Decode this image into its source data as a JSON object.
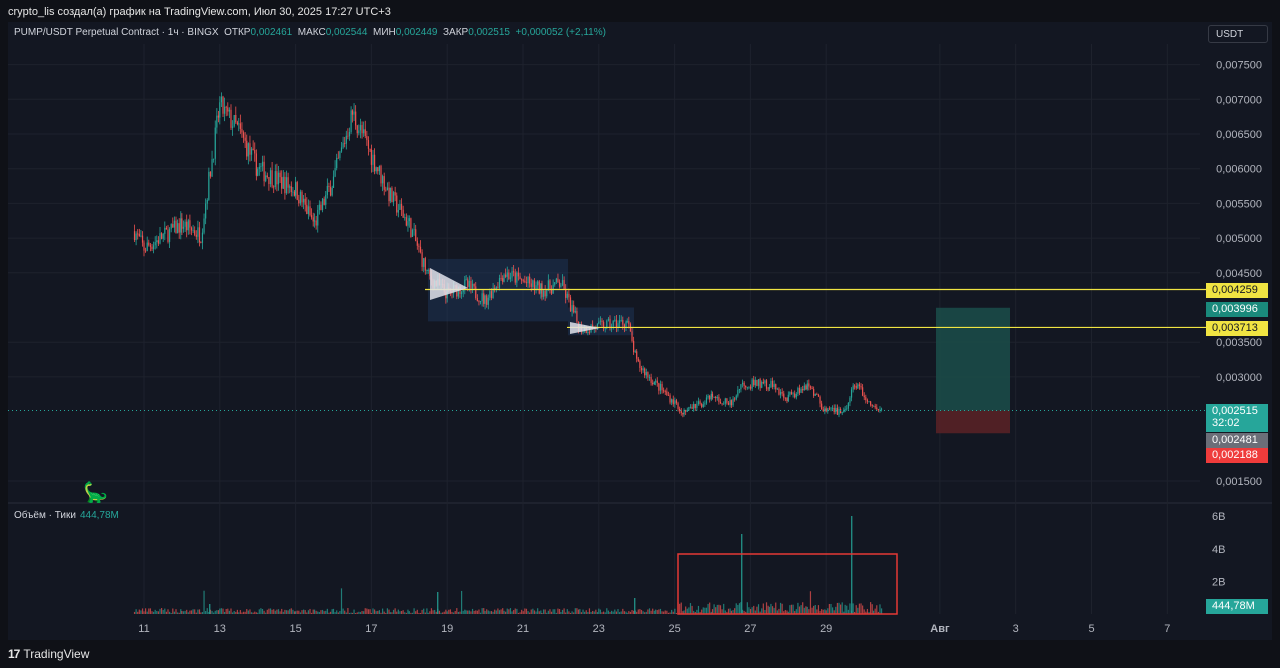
{
  "header": {
    "text": "crypto_lis создал(а) график на TradingView.com, Июл 30, 2025 17:27 UTC+3"
  },
  "legend": {
    "symbol": "PUMP/USDT Perpetual Contract · 1ч · BINGX",
    "open_label": "ОТКР",
    "open": "0,002461",
    "high_label": "МАКС",
    "high": "0,002544",
    "low_label": "МИН",
    "low": "0,002449",
    "close_label": "ЗАКР",
    "close": "0,002515",
    "change": "+0,000052 (+2,11%)"
  },
  "currency_button": "USDT",
  "volume_legend": {
    "label": "Объём · Тики",
    "value": "444,78M"
  },
  "price_labels": {
    "level_high": "0,004259",
    "target": "0,003996",
    "level_low": "0,003713",
    "last": "0,002515",
    "countdown": "32:02",
    "gray": "0,002481",
    "stop": "0,002188",
    "volume": "444,78M"
  },
  "footer": {
    "brand": "TradingView"
  },
  "colors": {
    "up": "#26a69a",
    "down": "#ef5350",
    "level": "#f0e442",
    "background": "#131722",
    "grid": "#1e222d"
  },
  "chart_data": {
    "type": "candlestick",
    "y_axis_ticks": [
      "0,007500",
      "0,007000",
      "0,006500",
      "0,006000",
      "0,005500",
      "0,005000",
      "0,004500",
      "0,003500",
      "0,003000",
      "0,001500"
    ],
    "ylim": [
      0.0012,
      0.0078
    ],
    "x_axis_ticks": [
      "11",
      "13",
      "15",
      "17",
      "19",
      "21",
      "23",
      "25",
      "27",
      "29",
      "Авг",
      "3",
      "5",
      "7"
    ],
    "volume_axis_ticks": [
      "6B",
      "4B",
      "2B"
    ],
    "close_path": [
      {
        "x": "Jul 10 18:00",
        "y": 0.0051
      },
      {
        "x": "Jul 11 00:00",
        "y": 0.00485
      },
      {
        "x": "Jul 12 00:00",
        "y": 0.0052
      },
      {
        "x": "Jul 12 12:00",
        "y": 0.00505
      },
      {
        "x": "Jul 13 00:00",
        "y": 0.0069
      },
      {
        "x": "Jul 13 12:00",
        "y": 0.00655
      },
      {
        "x": "Jul 14 00:00",
        "y": 0.006
      },
      {
        "x": "Jul 15 00:00",
        "y": 0.0057
      },
      {
        "x": "Jul 15 12:00",
        "y": 0.0052
      },
      {
        "x": "Jul 16 00:00",
        "y": 0.00585
      },
      {
        "x": "Jul 16 12:00",
        "y": 0.0068
      },
      {
        "x": "Jul 17 00:00",
        "y": 0.0062
      },
      {
        "x": "Jul 17 12:00",
        "y": 0.0056
      },
      {
        "x": "Jul 18 00:00",
        "y": 0.0052
      },
      {
        "x": "Jul 18 12:00",
        "y": 0.00445
      },
      {
        "x": "Jul 19 00:00",
        "y": 0.0042
      },
      {
        "x": "Jul 19 12:00",
        "y": 0.00432
      },
      {
        "x": "Jul 20 00:00",
        "y": 0.0041
      },
      {
        "x": "Jul 20 12:00",
        "y": 0.0045
      },
      {
        "x": "Jul 21 12:00",
        "y": 0.00425
      },
      {
        "x": "Jul 22 00:00",
        "y": 0.00435
      },
      {
        "x": "Jul 22 12:00",
        "y": 0.0037
      },
      {
        "x": "Jul 23 00:00",
        "y": 0.00372
      },
      {
        "x": "Jul 23 18:00",
        "y": 0.0038
      },
      {
        "x": "Jul 24 00:00",
        "y": 0.0032
      },
      {
        "x": "Jul 24 12:00",
        "y": 0.0029
      },
      {
        "x": "Jul 25 06:00",
        "y": 0.0025
      },
      {
        "x": "Jul 26 00:00",
        "y": 0.0027
      },
      {
        "x": "Jul 26 12:00",
        "y": 0.0026
      },
      {
        "x": "Jul 26 18:00",
        "y": 0.0029
      },
      {
        "x": "Jul 27 12:00",
        "y": 0.0029
      },
      {
        "x": "Jul 28 00:00",
        "y": 0.0027
      },
      {
        "x": "Jul 28 12:00",
        "y": 0.0029
      },
      {
        "x": "Jul 29 00:00",
        "y": 0.0025
      },
      {
        "x": "Jul 29 12:00",
        "y": 0.0025
      },
      {
        "x": "Jul 29 18:00",
        "y": 0.0029
      },
      {
        "x": "Jul 30 06:00",
        "y": 0.00255
      },
      {
        "x": "Jul 30 12:00",
        "y": 0.002515
      }
    ],
    "horizontal_levels": [
      0.004259,
      0.003713
    ],
    "last_price": 0.002515,
    "position": {
      "entry": 0.002515,
      "target": 0.003996,
      "stop": 0.002188
    }
  }
}
